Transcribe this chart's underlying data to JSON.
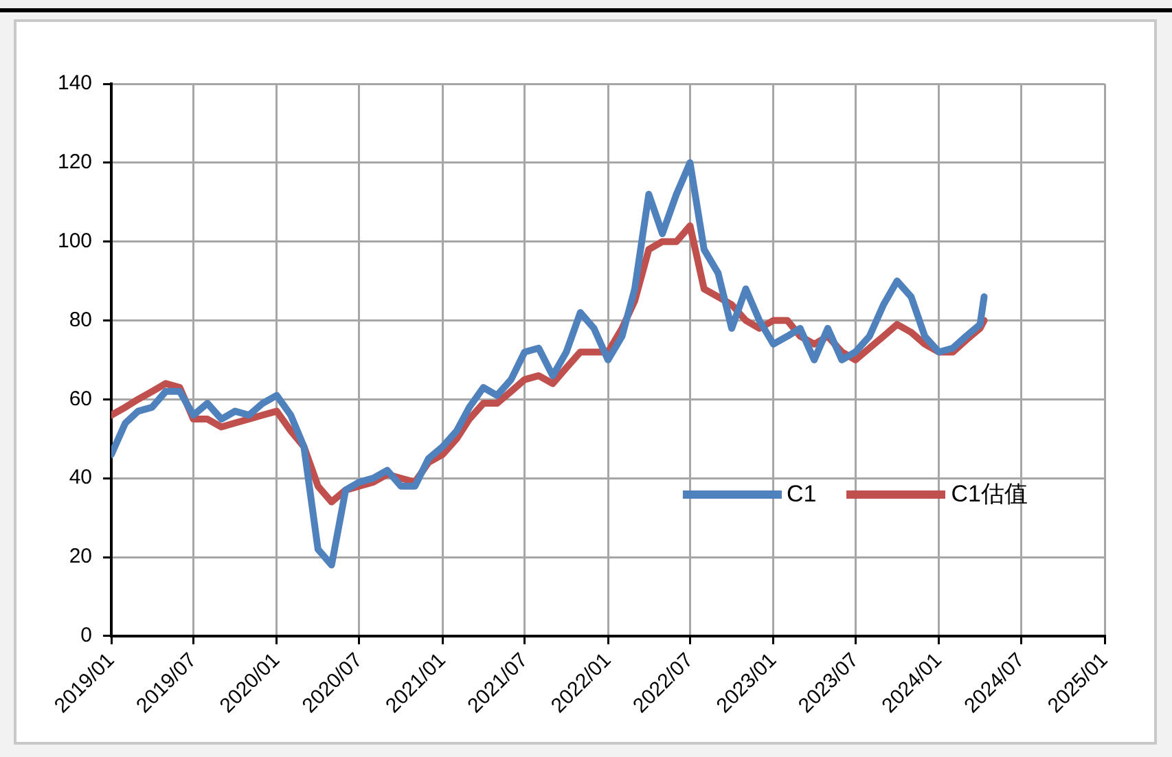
{
  "chart_data": {
    "type": "line",
    "x": [
      "2019-01",
      "2019-02",
      "2019-03",
      "2019-04",
      "2019-05",
      "2019-06",
      "2019-07",
      "2019-08",
      "2019-09",
      "2019-10",
      "2019-11",
      "2019-12",
      "2020-01",
      "2020-02",
      "2020-03",
      "2020-04",
      "2020-05",
      "2020-06",
      "2020-07",
      "2020-08",
      "2020-09",
      "2020-10",
      "2020-11",
      "2020-12",
      "2021-01",
      "2021-02",
      "2021-03",
      "2021-04",
      "2021-05",
      "2021-06",
      "2021-07",
      "2021-08",
      "2021-09",
      "2021-10",
      "2021-11",
      "2021-12",
      "2022-01",
      "2022-02",
      "2022-03",
      "2022-04",
      "2022-05",
      "2022-06",
      "2022-07",
      "2022-08",
      "2022-09",
      "2022-10",
      "2022-11",
      "2022-12",
      "2023-01",
      "2023-02",
      "2023-03",
      "2023-04",
      "2023-05",
      "2023-06",
      "2023-07",
      "2023-08",
      "2023-09",
      "2023-10",
      "2023-11",
      "2023-12",
      "2024-01",
      "2024-02",
      "2024-03",
      "2024-04",
      "2024-04-10"
    ],
    "series": [
      {
        "name": "C1",
        "color": "#4f81bd",
        "values": [
          46,
          54,
          57,
          58,
          62,
          62,
          56,
          59,
          55,
          57,
          56,
          59,
          61,
          56,
          48,
          22,
          18,
          37,
          39,
          40,
          42,
          38,
          38,
          45,
          48,
          52,
          58,
          63,
          61,
          65,
          72,
          73,
          66,
          72,
          82,
          78,
          70,
          76,
          88,
          112,
          102,
          112,
          120,
          98,
          92,
          78,
          88,
          80,
          74,
          76,
          78,
          70,
          78,
          70,
          72,
          76,
          84,
          90,
          86,
          76,
          72,
          73,
          76,
          79,
          86
        ]
      },
      {
        "name": "C1估值",
        "color": "#c0504d",
        "values": [
          56,
          58,
          60,
          62,
          64,
          63,
          55,
          55,
          53,
          54,
          55,
          56,
          57,
          52,
          48,
          38,
          34,
          37,
          38,
          39,
          41,
          40,
          39,
          44,
          46,
          50,
          55,
          59,
          59,
          62,
          65,
          66,
          64,
          68,
          72,
          72,
          72,
          78,
          85,
          98,
          100,
          100,
          104,
          88,
          86,
          84,
          80,
          78,
          80,
          80,
          76,
          74,
          76,
          72,
          70,
          73,
          76,
          79,
          77,
          74,
          72,
          72,
          75,
          78,
          80
        ]
      }
    ],
    "xlim": [
      "2019-01",
      "2025-01"
    ],
    "xticks": [
      {
        "value": "2019-01",
        "label": "2019/01"
      },
      {
        "value": "2019-07",
        "label": "2019/07"
      },
      {
        "value": "2020-01",
        "label": "2020/01"
      },
      {
        "value": "2020-07",
        "label": "2020/07"
      },
      {
        "value": "2021-01",
        "label": "2021/01"
      },
      {
        "value": "2021-07",
        "label": "2021/07"
      },
      {
        "value": "2022-01",
        "label": "2022/01"
      },
      {
        "value": "2022-07",
        "label": "2022/07"
      },
      {
        "value": "2023-01",
        "label": "2023/01"
      },
      {
        "value": "2023-07",
        "label": "2023/07"
      },
      {
        "value": "2024-01",
        "label": "2024/01"
      },
      {
        "value": "2024-07",
        "label": "2024/07"
      },
      {
        "value": "2025-01",
        "label": "2025/01"
      }
    ],
    "ylim": [
      0,
      140
    ],
    "yticks": [
      0,
      20,
      40,
      60,
      80,
      100,
      120,
      140
    ],
    "grid": true,
    "legend": "bottom right",
    "marker": "none",
    "line_style": "solid"
  }
}
